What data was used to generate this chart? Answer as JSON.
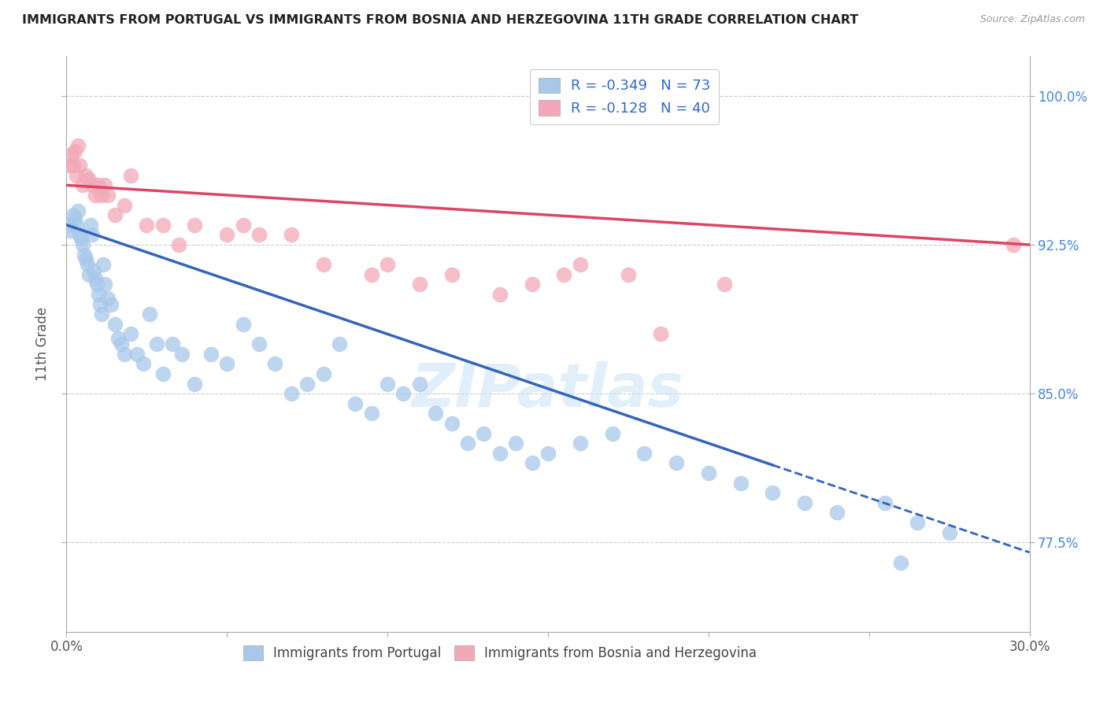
{
  "title": "IMMIGRANTS FROM PORTUGAL VS IMMIGRANTS FROM BOSNIA AND HERZEGOVINA 11TH GRADE CORRELATION CHART",
  "source": "Source: ZipAtlas.com",
  "ylabel": "11th Grade",
  "xlim": [
    0.0,
    30.0
  ],
  "ylim": [
    73.0,
    102.0
  ],
  "yticks": [
    77.5,
    85.0,
    92.5,
    100.0
  ],
  "xticks": [
    0.0,
    5.0,
    10.0,
    15.0,
    20.0,
    25.0,
    30.0
  ],
  "blue_R": -0.349,
  "blue_N": 73,
  "pink_R": -0.128,
  "pink_N": 40,
  "blue_color": "#a8c8ea",
  "pink_color": "#f2a8b8",
  "blue_line_color": "#3366bb",
  "pink_line_color": "#dd4466",
  "right_tick_color": "#4488dd",
  "legend_blue_label": "Immigrants from Portugal",
  "legend_pink_label": "Immigrants from Bosnia and Herzegovina",
  "watermark": "ZIPatlas",
  "blue_x": [
    0.1,
    0.15,
    0.2,
    0.25,
    0.3,
    0.35,
    0.4,
    0.45,
    0.5,
    0.55,
    0.6,
    0.65,
    0.7,
    0.75,
    0.8,
    0.85,
    0.9,
    0.95,
    1.0,
    1.05,
    1.1,
    1.15,
    1.2,
    1.3,
    1.4,
    1.5,
    1.6,
    1.7,
    1.8,
    2.0,
    2.2,
    2.4,
    2.6,
    2.8,
    3.0,
    3.3,
    3.6,
    4.0,
    4.5,
    5.0,
    5.5,
    6.0,
    6.5,
    7.0,
    7.5,
    8.0,
    8.5,
    9.0,
    9.5,
    10.0,
    10.5,
    11.0,
    11.5,
    12.0,
    12.5,
    13.0,
    13.5,
    14.0,
    14.5,
    15.0,
    16.0,
    17.0,
    18.0,
    19.0,
    20.0,
    21.0,
    22.0,
    23.0,
    24.0,
    25.5,
    26.5,
    27.5,
    26.0
  ],
  "blue_y": [
    93.5,
    93.2,
    94.0,
    93.8,
    93.5,
    94.2,
    93.0,
    92.8,
    92.5,
    92.0,
    91.8,
    91.5,
    91.0,
    93.5,
    93.0,
    91.2,
    90.8,
    90.5,
    90.0,
    89.5,
    89.0,
    91.5,
    90.5,
    89.8,
    89.5,
    88.5,
    87.8,
    87.5,
    87.0,
    88.0,
    87.0,
    86.5,
    89.0,
    87.5,
    86.0,
    87.5,
    87.0,
    85.5,
    87.0,
    86.5,
    88.5,
    87.5,
    86.5,
    85.0,
    85.5,
    86.0,
    87.5,
    84.5,
    84.0,
    85.5,
    85.0,
    85.5,
    84.0,
    83.5,
    82.5,
    83.0,
    82.0,
    82.5,
    81.5,
    82.0,
    82.5,
    83.0,
    82.0,
    81.5,
    81.0,
    80.5,
    80.0,
    79.5,
    79.0,
    79.5,
    78.5,
    78.0,
    76.5
  ],
  "pink_x": [
    0.1,
    0.15,
    0.2,
    0.25,
    0.3,
    0.35,
    0.4,
    0.5,
    0.6,
    0.7,
    0.8,
    0.9,
    1.0,
    1.1,
    1.2,
    1.3,
    1.5,
    1.8,
    2.0,
    2.5,
    3.0,
    3.5,
    4.0,
    5.0,
    5.5,
    6.0,
    7.0,
    8.0,
    9.5,
    10.0,
    11.0,
    12.0,
    13.5,
    14.5,
    15.5,
    16.0,
    17.5,
    18.5,
    20.5,
    29.5
  ],
  "pink_y": [
    96.5,
    97.0,
    96.5,
    97.2,
    96.0,
    97.5,
    96.5,
    95.5,
    96.0,
    95.8,
    95.5,
    95.0,
    95.5,
    95.0,
    95.5,
    95.0,
    94.0,
    94.5,
    96.0,
    93.5,
    93.5,
    92.5,
    93.5,
    93.0,
    93.5,
    93.0,
    93.0,
    91.5,
    91.0,
    91.5,
    90.5,
    91.0,
    90.0,
    90.5,
    91.0,
    91.5,
    91.0,
    88.0,
    90.5,
    92.5
  ],
  "blue_line_x_solid_end": 22.0
}
